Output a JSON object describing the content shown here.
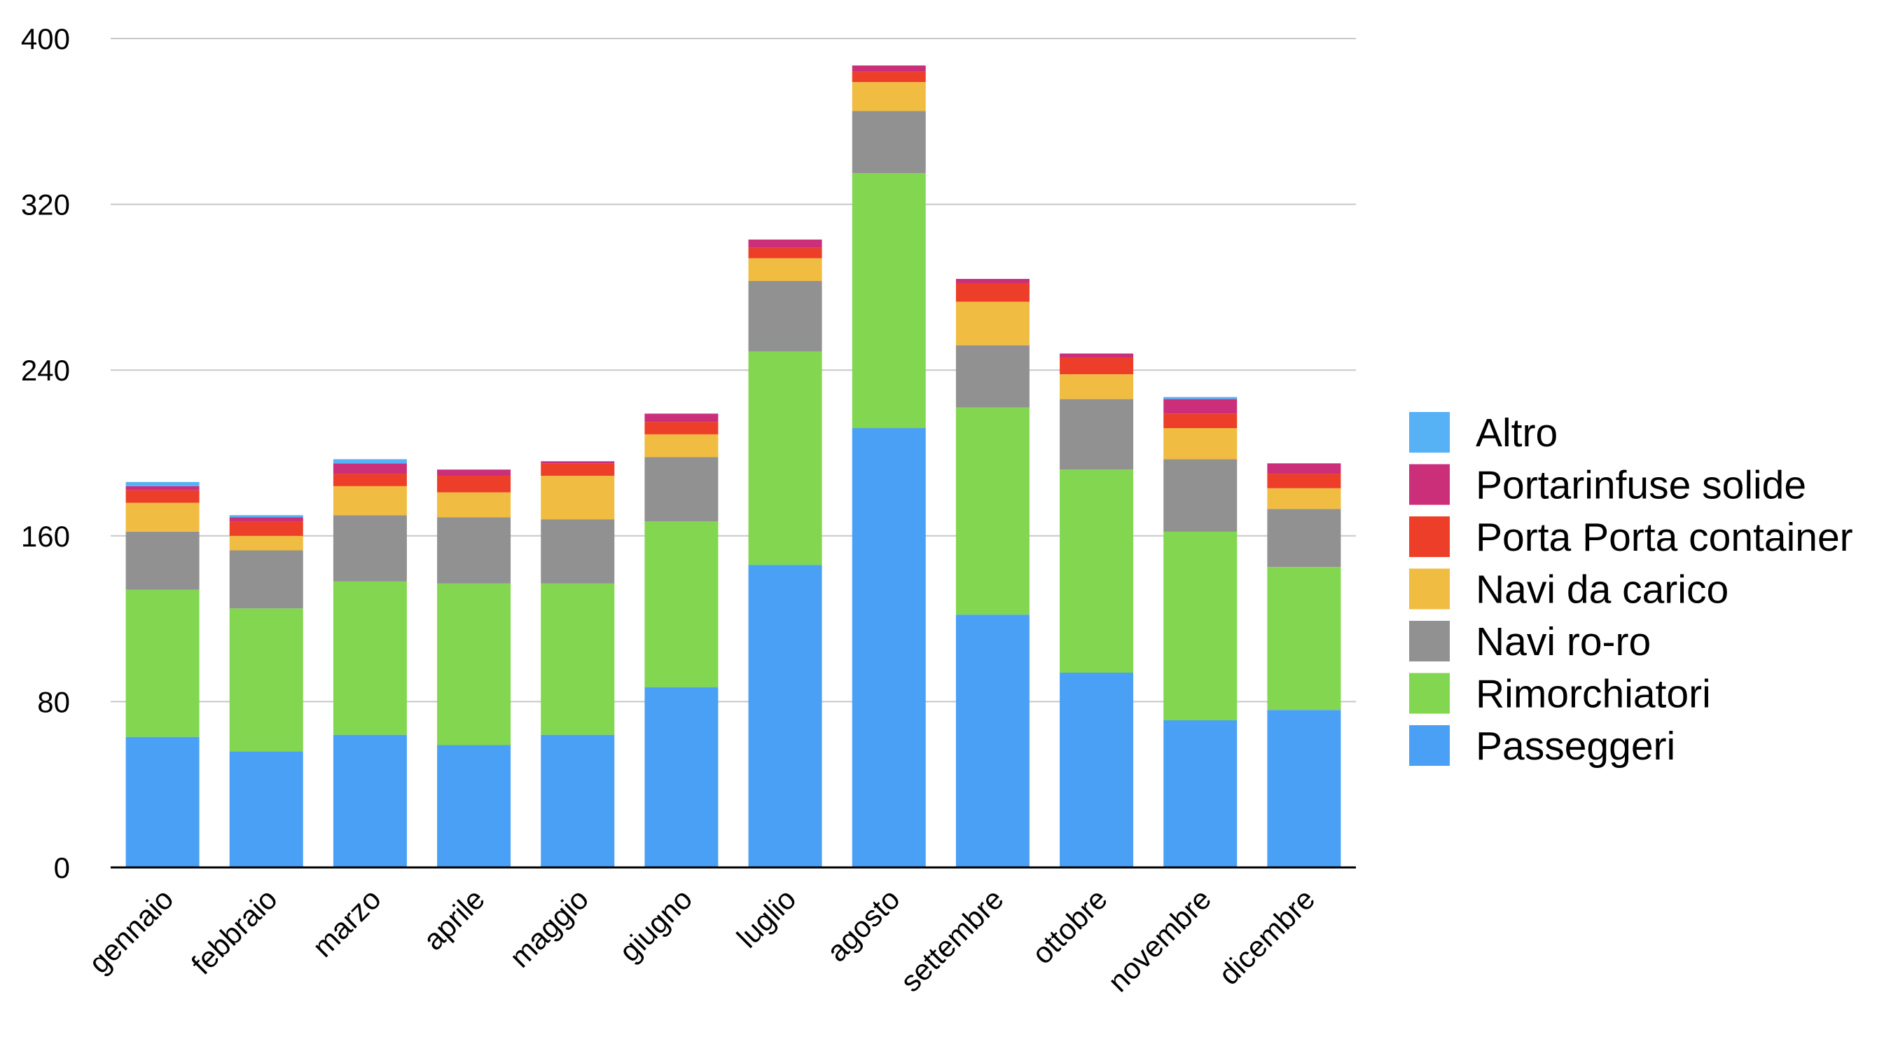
{
  "chart_data": {
    "type": "bar",
    "stacked": true,
    "title": "",
    "xlabel": "",
    "ylabel": "",
    "ylim": [
      0,
      400
    ],
    "yticks": [
      0,
      80,
      160,
      240,
      320,
      400
    ],
    "grid": true,
    "legend_position": "right",
    "categories": [
      "gennaio",
      "febbraio",
      "marzo",
      "aprile",
      "maggio",
      "giugno",
      "luglio",
      "agosto",
      "settembre",
      "ottobre",
      "novembre",
      "dicembre"
    ],
    "series": [
      {
        "name": "Passeggeri",
        "color": "#4aa0f5",
        "values": [
          63,
          56,
          64,
          59,
          64,
          87,
          146,
          212,
          122,
          94,
          71,
          76
        ]
      },
      {
        "name": "Rimorchiatori",
        "color": "#82d650",
        "values": [
          71,
          69,
          74,
          78,
          73,
          80,
          103,
          123,
          100,
          98,
          91,
          69
        ]
      },
      {
        "name": "Navi ro-ro",
        "color": "#919191",
        "values": [
          28,
          28,
          32,
          32,
          31,
          31,
          34,
          30,
          30,
          34,
          35,
          28
        ]
      },
      {
        "name": "Navi da carico",
        "color": "#f0bc42",
        "values": [
          14,
          7,
          14,
          12,
          21,
          11,
          11,
          14,
          21,
          12,
          15,
          10
        ]
      },
      {
        "name": "Porta Porta container",
        "color": "#ec3e28",
        "values": [
          6,
          7,
          6,
          8,
          6,
          6,
          5,
          5,
          9,
          8,
          7,
          7
        ]
      },
      {
        "name": "Portarinfuse solide",
        "color": "#cb2f7a",
        "values": [
          2,
          2,
          5,
          3,
          1,
          4,
          4,
          3,
          2,
          2,
          7,
          5
        ]
      },
      {
        "name": "Altro",
        "color": "#56b1f5",
        "values": [
          2,
          1,
          2,
          0,
          0,
          0,
          0,
          0,
          0,
          0,
          1,
          0
        ]
      }
    ],
    "legend_order": [
      "Altro",
      "Portarinfuse solide",
      "Porta Porta container",
      "Navi da carico",
      "Navi ro-ro",
      "Rimorchiatori",
      "Passeggeri"
    ]
  }
}
